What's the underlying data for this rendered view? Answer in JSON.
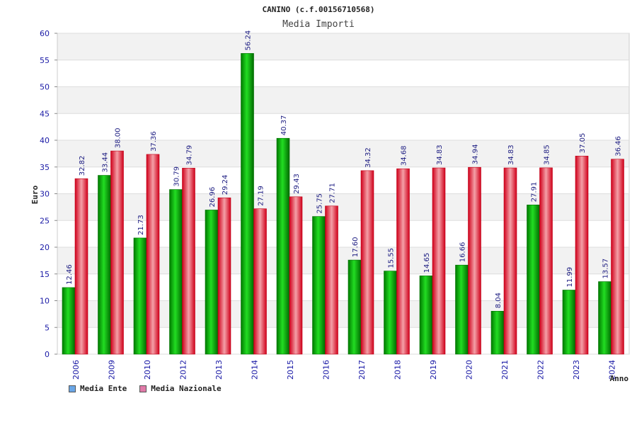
{
  "chart_data": {
    "type": "bar",
    "title": "CANINO (c.f.00156710568)",
    "subtitle": "Media Importi",
    "xlabel": "Anno",
    "ylabel": "Euro",
    "ylim": [
      0,
      60
    ],
    "yticks": [
      "0",
      "5",
      "10",
      "15",
      "20",
      "25",
      "30",
      "35",
      "40",
      "45",
      "50",
      "55",
      "60"
    ],
    "grid": true,
    "legend_position": "bottom-left",
    "categories": [
      "2006",
      "2009",
      "2010",
      "2012",
      "2013",
      "2014",
      "2015",
      "2016",
      "2017",
      "2018",
      "2019",
      "2020",
      "2021",
      "2022",
      "2023",
      "2024"
    ],
    "series": [
      {
        "name": "Media Ente",
        "color": "#00b000",
        "values": [
          12.46,
          33.44,
          21.73,
          30.79,
          26.96,
          56.24,
          40.37,
          25.75,
          17.6,
          15.55,
          14.65,
          16.66,
          8.04,
          27.91,
          11.99,
          13.57
        ],
        "labels": [
          "12.46",
          "33.44",
          "21.73",
          "30.79",
          "26.96",
          "56.24",
          "40.37",
          "25.75",
          "17.60",
          "15.55",
          "14.65",
          "16.66",
          "8.04",
          "27.91",
          "11.99",
          "13.57"
        ]
      },
      {
        "name": "Media Nazionale",
        "color": "#e8001c",
        "values": [
          32.82,
          38.0,
          37.36,
          34.79,
          29.24,
          27.19,
          29.43,
          27.71,
          34.32,
          34.68,
          34.83,
          34.94,
          34.83,
          34.85,
          37.05,
          36.46
        ],
        "labels": [
          "32.82",
          "38.00",
          "37.36",
          "34.79",
          "29.24",
          "27.19",
          "29.43",
          "27.71",
          "34.32",
          "34.68",
          "34.83",
          "34.94",
          "34.83",
          "34.85",
          "37.05",
          "36.46"
        ]
      }
    ],
    "legend": [
      {
        "label": "Media Ente",
        "color": "#6aa6e6"
      },
      {
        "label": "Media Nazionale",
        "color": "#e07aa8"
      }
    ]
  }
}
